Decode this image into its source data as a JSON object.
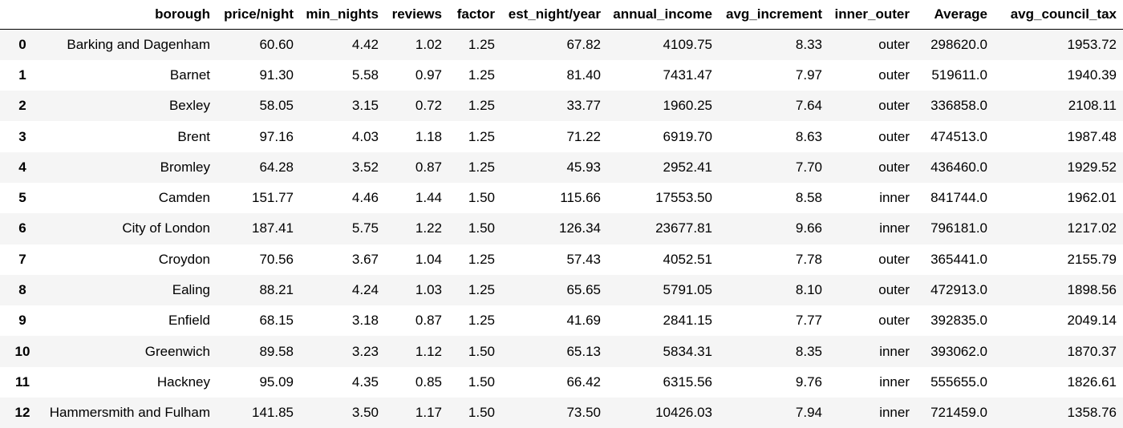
{
  "table": {
    "columns": [
      "",
      "borough",
      "price/night",
      "min_nights",
      "reviews",
      "factor",
      "est_night/year",
      "annual_income",
      "avg_increment",
      "inner_outer",
      "Average",
      "avg_council_tax"
    ],
    "rows": [
      {
        "index": "0",
        "cells": [
          "Barking and Dagenham",
          "60.60",
          "4.42",
          "1.02",
          "1.25",
          "67.82",
          "4109.75",
          "8.33",
          "outer",
          "298620.0",
          "1953.72"
        ]
      },
      {
        "index": "1",
        "cells": [
          "Barnet",
          "91.30",
          "5.58",
          "0.97",
          "1.25",
          "81.40",
          "7431.47",
          "7.97",
          "outer",
          "519611.0",
          "1940.39"
        ]
      },
      {
        "index": "2",
        "cells": [
          "Bexley",
          "58.05",
          "3.15",
          "0.72",
          "1.25",
          "33.77",
          "1960.25",
          "7.64",
          "outer",
          "336858.0",
          "2108.11"
        ]
      },
      {
        "index": "3",
        "cells": [
          "Brent",
          "97.16",
          "4.03",
          "1.18",
          "1.25",
          "71.22",
          "6919.70",
          "8.63",
          "outer",
          "474513.0",
          "1987.48"
        ]
      },
      {
        "index": "4",
        "cells": [
          "Bromley",
          "64.28",
          "3.52",
          "0.87",
          "1.25",
          "45.93",
          "2952.41",
          "7.70",
          "outer",
          "436460.0",
          "1929.52"
        ]
      },
      {
        "index": "5",
        "cells": [
          "Camden",
          "151.77",
          "4.46",
          "1.44",
          "1.50",
          "115.66",
          "17553.50",
          "8.58",
          "inner",
          "841744.0",
          "1962.01"
        ]
      },
      {
        "index": "6",
        "cells": [
          "City of London",
          "187.41",
          "5.75",
          "1.22",
          "1.50",
          "126.34",
          "23677.81",
          "9.66",
          "inner",
          "796181.0",
          "1217.02"
        ]
      },
      {
        "index": "7",
        "cells": [
          "Croydon",
          "70.56",
          "3.67",
          "1.04",
          "1.25",
          "57.43",
          "4052.51",
          "7.78",
          "outer",
          "365441.0",
          "2155.79"
        ]
      },
      {
        "index": "8",
        "cells": [
          "Ealing",
          "88.21",
          "4.24",
          "1.03",
          "1.25",
          "65.65",
          "5791.05",
          "8.10",
          "outer",
          "472913.0",
          "1898.56"
        ]
      },
      {
        "index": "9",
        "cells": [
          "Enfield",
          "68.15",
          "3.18",
          "0.87",
          "1.25",
          "41.69",
          "2841.15",
          "7.77",
          "outer",
          "392835.0",
          "2049.14"
        ]
      },
      {
        "index": "10",
        "cells": [
          "Greenwich",
          "89.58",
          "3.23",
          "1.12",
          "1.50",
          "65.13",
          "5834.31",
          "8.35",
          "inner",
          "393062.0",
          "1870.37"
        ]
      },
      {
        "index": "11",
        "cells": [
          "Hackney",
          "95.09",
          "4.35",
          "0.85",
          "1.50",
          "66.42",
          "6315.56",
          "9.76",
          "inner",
          "555655.0",
          "1826.61"
        ]
      },
      {
        "index": "12",
        "cells": [
          "Hammersmith and Fulham",
          "141.85",
          "3.50",
          "1.17",
          "1.50",
          "73.50",
          "10426.03",
          "7.94",
          "inner",
          "721459.0",
          "1358.76"
        ]
      }
    ]
  }
}
